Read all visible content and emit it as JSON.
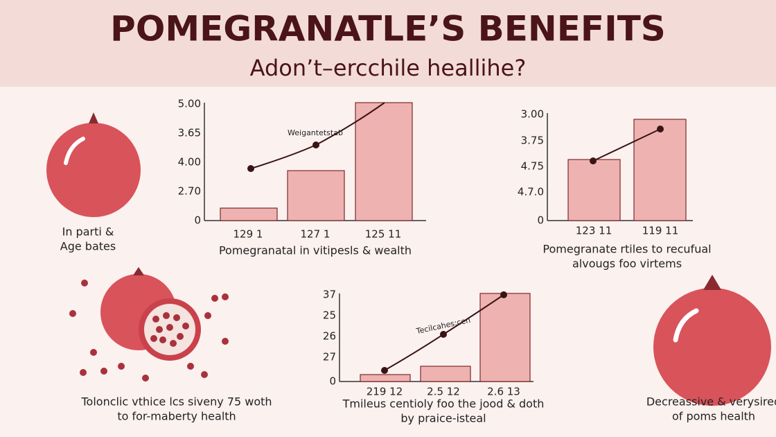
{
  "header": {
    "title": "POMEGRANATLE’S BENEFITS",
    "subtitle": "Adon’t–ercchile heallihe?"
  },
  "panels": [
    {
      "ticks": [
        "5.00",
        "3.65",
        "4.00",
        "2.70",
        "0"
      ],
      "categories": [
        "129 1",
        "127 1",
        "125 11"
      ],
      "line_label": "Weigantetstab",
      "caption": [
        "Pomegranatal in vitipesls & wealth"
      ]
    },
    {
      "ticks": [
        "3.00",
        "3.75",
        "4.75",
        "4.7.0",
        "0"
      ],
      "categories": [
        "123 11",
        "119 11"
      ],
      "caption": [
        "Pomegranate rtiles to recufual",
        "alvougs foo virtems"
      ]
    },
    {
      "ticks": [
        "37",
        "25",
        "26",
        "27",
        "0"
      ],
      "categories": [
        "219 12",
        "2.5 12",
        "2.6 13"
      ],
      "line_label": "Tecilcahes:cen",
      "caption": [
        "Tmileus centioly foo the jood & doth",
        "by praice-isteal"
      ]
    }
  ],
  "notes": {
    "top_left": [
      "In parti &",
      "Age bates"
    ],
    "bottom_left": [
      "Tolonclic vthice lcs siveny 75 woth",
      "to for-maberty health"
    ],
    "bottom_right": [
      "Decreassive & verysired",
      "of poms health"
    ]
  }
}
